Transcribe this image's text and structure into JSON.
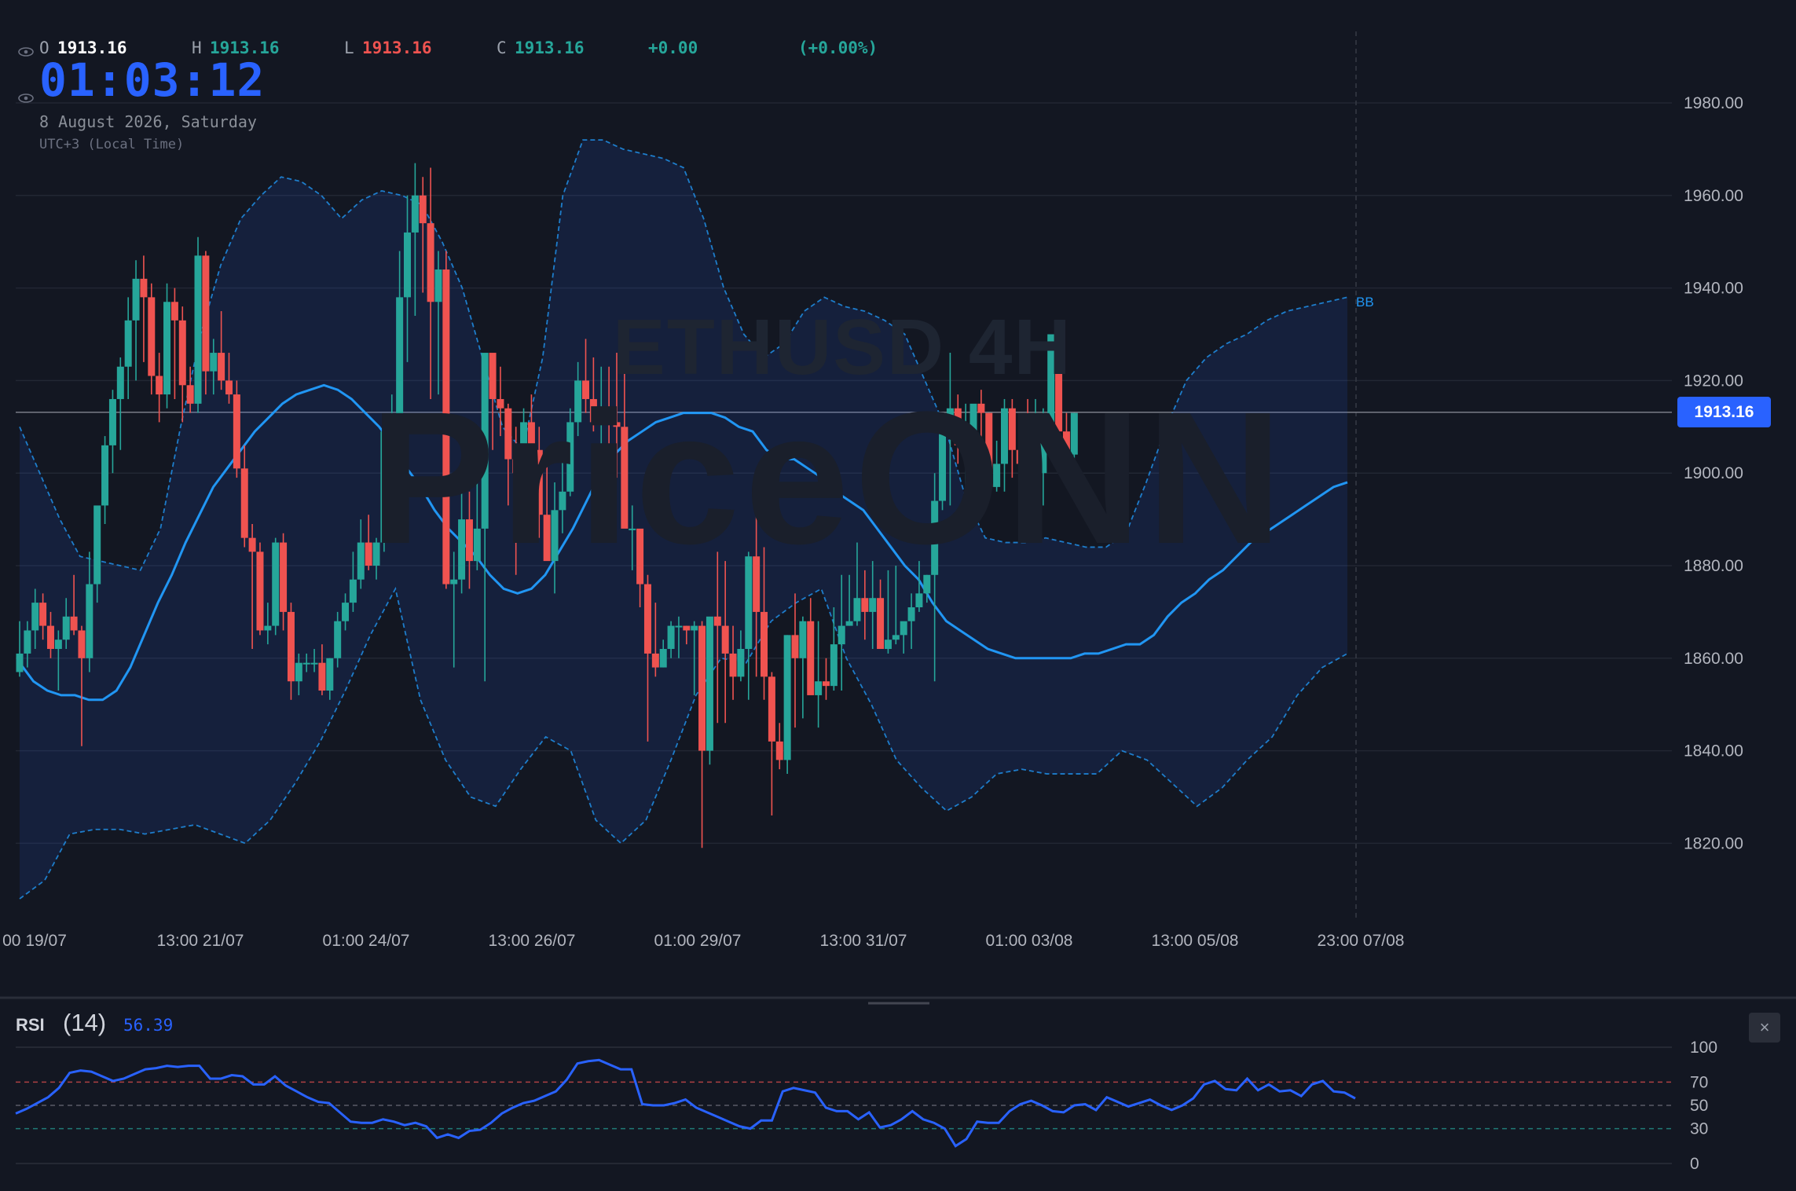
{
  "header": {
    "open_key": "O",
    "open": "1913.16",
    "high_key": "H",
    "high": "1913.16",
    "low_key": "L",
    "low": "1913.16",
    "close_key": "C",
    "close": "1913.16",
    "change": "+0.00",
    "change_pct": "(+0.00%)",
    "clock": "01:03:12",
    "date": "8 August 2026, Saturday",
    "timezone": "UTC+3 (Local Time)"
  },
  "watermark": {
    "symbol_line": "ETHUSD 4H",
    "brand": "PriceONN"
  },
  "last_price": "1913.16",
  "indicator_label": "BB",
  "rsi": {
    "label": "RSI",
    "period": "(14)",
    "value": "56.39",
    "close_symbol": "×"
  },
  "colors": {
    "up": "#26a69a",
    "down": "#ef5350",
    "accent": "#2962ff",
    "band": "#2196f3",
    "background": "#131722"
  },
  "chart_data": [
    {
      "type": "candlestick",
      "symbol": "ETHUSD",
      "timeframe": "4H",
      "indicators": [
        "Bollinger Bands",
        "BB basis (SMA)"
      ],
      "y_ticks": [
        "1980.00",
        "1960.00",
        "1940.00",
        "1920.00",
        "1900.00",
        "1880.00",
        "1860.00",
        "1840.00",
        "1820.00"
      ],
      "ylim": [
        1805,
        1990
      ],
      "x_ticks": [
        "00 19/07",
        "13:00 21/07",
        "01:00 24/07",
        "13:00 26/07",
        "01:00 29/07",
        "13:00 31/07",
        "01:00 03/08",
        "13:00 05/08",
        "23:00 07/08"
      ],
      "last_price": 1913.16,
      "grid": true,
      "candles_ohlc": [
        [
          1857,
          1868,
          1856,
          1861
        ],
        [
          1861,
          1868,
          1858,
          1866
        ],
        [
          1866,
          1875,
          1862,
          1872
        ],
        [
          1872,
          1874,
          1864,
          1867
        ],
        [
          1867,
          1870,
          1860,
          1862
        ],
        [
          1862,
          1866,
          1853,
          1864
        ],
        [
          1864,
          1873,
          1862,
          1869
        ],
        [
          1869,
          1878,
          1865,
          1866
        ],
        [
          1866,
          1867,
          1841,
          1860
        ],
        [
          1860,
          1883,
          1857,
          1876
        ],
        [
          1876,
          1890,
          1872,
          1893
        ],
        [
          1893,
          1908,
          1889,
          1906
        ],
        [
          1906,
          1918,
          1900,
          1916
        ],
        [
          1916,
          1925,
          1905,
          1923
        ],
        [
          1923,
          1938,
          1916,
          1933
        ],
        [
          1933,
          1946,
          1920,
          1942
        ],
        [
          1942,
          1947,
          1924,
          1938
        ],
        [
          1938,
          1941,
          1917,
          1921
        ],
        [
          1921,
          1926,
          1911,
          1917
        ],
        [
          1917,
          1941,
          1914,
          1937
        ],
        [
          1937,
          1940,
          1916,
          1933
        ],
        [
          1933,
          1936,
          1911,
          1919
        ],
        [
          1919,
          1923,
          1913,
          1915
        ],
        [
          1915,
          1951,
          1913,
          1947
        ],
        [
          1947,
          1948,
          1917,
          1922
        ],
        [
          1922,
          1929,
          1917,
          1926
        ],
        [
          1926,
          1935,
          1918,
          1920
        ],
        [
          1920,
          1926,
          1915,
          1917
        ],
        [
          1917,
          1920,
          1899,
          1901
        ],
        [
          1901,
          1906,
          1884,
          1886
        ],
        [
          1886,
          1889,
          1862,
          1883
        ],
        [
          1883,
          1885,
          1865,
          1866
        ],
        [
          1866,
          1872,
          1863,
          1867
        ],
        [
          1867,
          1886,
          1865,
          1885
        ],
        [
          1885,
          1887,
          1866,
          1870
        ],
        [
          1870,
          1872,
          1851,
          1855
        ],
        [
          1855,
          1861,
          1852,
          1859
        ],
        [
          1859,
          1861,
          1857,
          1859
        ],
        [
          1859,
          1862,
          1857,
          1859
        ],
        [
          1859,
          1863,
          1852,
          1853
        ],
        [
          1853,
          1860,
          1851,
          1860
        ],
        [
          1860,
          1870,
          1858,
          1868
        ],
        [
          1868,
          1874,
          1866,
          1872
        ],
        [
          1872,
          1883,
          1870,
          1877
        ],
        [
          1877,
          1890,
          1875,
          1885
        ],
        [
          1885,
          1891,
          1879,
          1880
        ],
        [
          1880,
          1886,
          1877,
          1885
        ],
        [
          1885,
          1911,
          1883,
          1909
        ],
        [
          1909,
          1917,
          1897,
          1911
        ],
        [
          1911,
          1948,
          1909,
          1938
        ],
        [
          1938,
          1960,
          1924,
          1952
        ],
        [
          1952,
          1967,
          1934,
          1960
        ],
        [
          1960,
          1964,
          1939,
          1954
        ],
        [
          1954,
          1966,
          1916,
          1937
        ],
        [
          1937,
          1948,
          1917,
          1944
        ],
        [
          1944,
          1948,
          1875,
          1876
        ],
        [
          1876,
          1883,
          1858,
          1877
        ],
        [
          1877,
          1898,
          1874,
          1890
        ],
        [
          1890,
          1896,
          1875,
          1881
        ],
        [
          1881,
          1898,
          1879,
          1888
        ],
        [
          1888,
          1914,
          1855,
          1926
        ],
        [
          1926,
          1925,
          1905,
          1916
        ],
        [
          1916,
          1923,
          1908,
          1914
        ],
        [
          1914,
          1915,
          1893,
          1903
        ],
        [
          1903,
          1910,
          1878,
          1900
        ],
        [
          1900,
          1914,
          1893,
          1911
        ],
        [
          1911,
          1917,
          1894,
          1905
        ],
        [
          1905,
          1910,
          1886,
          1891
        ],
        [
          1891,
          1904,
          1884,
          1881
        ],
        [
          1881,
          1898,
          1874,
          1892
        ],
        [
          1892,
          1905,
          1887,
          1896
        ],
        [
          1896,
          1914,
          1895,
          1911
        ],
        [
          1911,
          1924,
          1908,
          1920
        ],
        [
          1920,
          1929,
          1913,
          1916
        ],
        [
          1916,
          1925,
          1909,
          1911
        ],
        [
          1911,
          1923,
          1901,
          1914
        ],
        [
          1914,
          1923,
          1901,
          1911
        ],
        [
          1911,
          1926,
          1899,
          1910
        ],
        [
          1910,
          1925,
          1898,
          1888
        ],
        [
          1888,
          1893,
          1879,
          1888
        ],
        [
          1888,
          1885,
          1871,
          1876
        ],
        [
          1876,
          1878,
          1842,
          1861
        ],
        [
          1861,
          1872,
          1856,
          1858
        ],
        [
          1858,
          1864,
          1858,
          1862
        ],
        [
          1862,
          1868,
          1860,
          1867
        ],
        [
          1867,
          1869,
          1860,
          1867
        ],
        [
          1867,
          1867,
          1863,
          1866
        ],
        [
          1866,
          1868,
          1852,
          1867
        ],
        [
          1867,
          1868,
          1819,
          1840
        ],
        [
          1840,
          1846,
          1837,
          1869
        ],
        [
          1869,
          1883,
          1846,
          1867
        ],
        [
          1867,
          1881,
          1846,
          1861
        ],
        [
          1861,
          1867,
          1851,
          1856
        ],
        [
          1856,
          1866,
          1855,
          1862
        ],
        [
          1862,
          1883,
          1851,
          1882
        ],
        [
          1882,
          1894,
          1856,
          1870
        ],
        [
          1870,
          1884,
          1851,
          1856
        ],
        [
          1856,
          1857,
          1826,
          1842
        ],
        [
          1842,
          1846,
          1836,
          1838
        ],
        [
          1838,
          1865,
          1835,
          1865
        ],
        [
          1865,
          1874,
          1845,
          1860
        ],
        [
          1860,
          1869,
          1847,
          1868
        ],
        [
          1868,
          1873,
          1854,
          1852
        ],
        [
          1852,
          1868,
          1845,
          1855
        ],
        [
          1855,
          1860,
          1851,
          1854
        ],
        [
          1854,
          1871,
          1853,
          1863
        ],
        [
          1863,
          1878,
          1853,
          1867
        ],
        [
          1867,
          1878,
          1867,
          1868
        ],
        [
          1868,
          1885,
          1867,
          1873
        ],
        [
          1873,
          1879,
          1864,
          1870
        ],
        [
          1870,
          1881,
          1862,
          1873
        ],
        [
          1873,
          1877,
          1862,
          1862
        ],
        [
          1862,
          1879,
          1861,
          1864
        ],
        [
          1864,
          1880,
          1863,
          1865
        ],
        [
          1865,
          1867,
          1861,
          1868
        ],
        [
          1868,
          1874,
          1862,
          1871
        ],
        [
          1871,
          1881,
          1870,
          1874
        ],
        [
          1874,
          1878,
          1872,
          1878
        ],
        [
          1878,
          1900,
          1855,
          1894
        ],
        [
          1894,
          1905,
          1892,
          1911
        ],
        [
          1911,
          1926,
          1893,
          1914
        ],
        [
          1914,
          1917,
          1902,
          1906
        ],
        [
          1906,
          1915,
          1893,
          1909
        ],
        [
          1909,
          1914,
          1895,
          1915
        ],
        [
          1915,
          1918,
          1894,
          1913
        ],
        [
          1913,
          1913,
          1896,
          1897
        ],
        [
          1897,
          1907,
          1896,
          1902
        ],
        [
          1902,
          1916,
          1896,
          1914
        ],
        [
          1914,
          1916,
          1899,
          1905
        ],
        [
          1905,
          1906,
          1893,
          1902
        ],
        [
          1902,
          1916,
          1896,
          1895
        ],
        [
          1895,
          1916,
          1895,
          1900
        ],
        [
          1900,
          1914,
          1893,
          1908
        ],
        [
          1908,
          1926,
          1906,
          1930
        ],
        [
          1930,
          1931,
          1906,
          1909
        ],
        [
          1909,
          1913,
          1901,
          1904
        ],
        [
          1904,
          1913,
          1902,
          1913
        ]
      ],
      "bb_basis": [
        1859,
        1855,
        1853,
        1852,
        1852,
        1851,
        1851,
        1853,
        1858,
        1865,
        1872,
        1878,
        1885,
        1891,
        1897,
        1901,
        1905,
        1909,
        1912,
        1915,
        1917,
        1918,
        1919,
        1918,
        1916,
        1913,
        1910,
        1906,
        1901,
        1897,
        1892,
        1888,
        1885,
        1882,
        1878,
        1875,
        1874,
        1875,
        1878,
        1883,
        1888,
        1894,
        1900,
        1904,
        1907,
        1909,
        1911,
        1912,
        1913,
        1913,
        1913,
        1912,
        1910,
        1909,
        1905,
        1903,
        1903,
        1901,
        1899,
        1896,
        1894,
        1892,
        1888,
        1884,
        1880,
        1877,
        1872,
        1868,
        1866,
        1864,
        1862,
        1861,
        1860,
        1860,
        1860,
        1860,
        1860,
        1861,
        1861,
        1862,
        1863,
        1863,
        1865,
        1869,
        1872,
        1874,
        1877,
        1879,
        1882,
        1885,
        1887,
        1889,
        1891,
        1893,
        1895,
        1897,
        1898
      ],
      "bb_upper": [
        1910,
        1900,
        1890,
        1882,
        1881,
        1880,
        1879,
        1888,
        1910,
        1930,
        1945,
        1955,
        1960,
        1964,
        1963,
        1960,
        1955,
        1959,
        1961,
        1960,
        1958,
        1950,
        1940,
        1925,
        1910,
        1905,
        1925,
        1960,
        1972,
        1972,
        1970,
        1969,
        1968,
        1966,
        1955,
        1940,
        1930,
        1925,
        1928,
        1935,
        1938,
        1936,
        1935,
        1933,
        1930,
        1920,
        1910,
        1895,
        1886,
        1885,
        1885,
        1886,
        1885,
        1884,
        1884,
        1887,
        1898,
        1910,
        1920,
        1925,
        1928,
        1930,
        1933,
        1935,
        1936,
        1937,
        1938
      ],
      "bb_lower": [
        1808,
        1812,
        1822,
        1823,
        1823,
        1822,
        1823,
        1824,
        1822,
        1820,
        1825,
        1833,
        1842,
        1853,
        1865,
        1875,
        1851,
        1838,
        1830,
        1828,
        1836,
        1843,
        1840,
        1825,
        1820,
        1825,
        1838,
        1852,
        1860,
        1859,
        1868,
        1872,
        1875,
        1860,
        1850,
        1838,
        1832,
        1827,
        1830,
        1835,
        1836,
        1835,
        1835,
        1835,
        1840,
        1838,
        1833,
        1828,
        1832,
        1838,
        1843,
        1852,
        1858,
        1861
      ]
    },
    {
      "type": "line",
      "title": "RSI",
      "period": 14,
      "y_ticks": [
        "100",
        "70",
        "50",
        "30",
        "0"
      ],
      "ylim": [
        0,
        100
      ],
      "levels": [
        70,
        50,
        30
      ],
      "last_value": 56.39,
      "values": [
        43,
        47,
        52,
        57,
        65,
        78,
        80,
        79,
        75,
        71,
        73,
        77,
        81,
        82,
        84,
        83,
        84,
        84,
        73,
        73,
        76,
        75,
        68,
        68,
        75,
        67,
        62,
        57,
        53,
        52,
        44,
        36,
        35,
        35,
        38,
        36,
        33,
        35,
        32,
        22,
        25,
        22,
        28,
        29,
        35,
        43,
        48,
        52,
        54,
        58,
        62,
        72,
        86,
        88,
        89,
        85,
        81,
        81,
        51,
        50,
        50,
        52,
        55,
        48,
        44,
        40,
        36,
        32,
        30,
        37,
        37,
        62,
        65,
        63,
        61,
        48,
        45,
        45,
        38,
        44,
        31,
        33,
        38,
        45,
        38,
        35,
        30,
        15,
        21,
        36,
        35,
        35,
        45,
        51,
        54,
        50,
        45,
        44,
        50,
        51,
        46,
        57,
        53,
        49,
        52,
        55,
        50,
        46,
        50,
        56,
        68,
        71,
        64,
        63,
        73,
        63,
        68,
        62,
        63,
        58,
        68,
        71,
        62,
        61,
        56
      ]
    }
  ]
}
